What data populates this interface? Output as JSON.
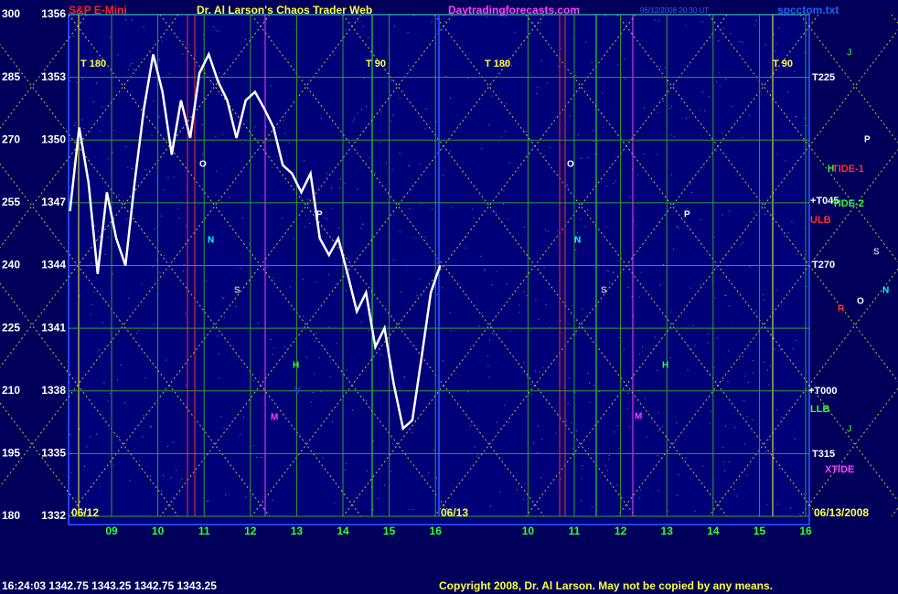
{
  "chart_data": {
    "type": "line",
    "header": [
      {
        "text": "S&P E-Mini",
        "color": "#ff2020"
      },
      {
        "text": "Dr. Al Larson's Chaos Trader Web",
        "color": "#ffff40"
      },
      {
        "text": "Daytradingforecasts.com",
        "color": "#ff40ff"
      },
      {
        "text": "06/12/2008 20:30 UT",
        "color": "#4060ff"
      },
      {
        "text": "spcctom.txt",
        "color": "#2060ff"
      }
    ],
    "ylim": [
      1332,
      1356
    ],
    "yticks": [
      1332,
      1335,
      1338,
      1341,
      1344,
      1347,
      1350,
      1353,
      1356
    ],
    "y2lim": [
      180,
      300
    ],
    "y2ticks": [
      180,
      195,
      210,
      225,
      240,
      255,
      270,
      285,
      300
    ],
    "xlim": [
      -0.93,
      15.08
    ],
    "xticks": [
      {
        "value": 0,
        "label": "09"
      },
      {
        "value": 1,
        "label": "10"
      },
      {
        "value": 2,
        "label": "11"
      },
      {
        "value": 3,
        "label": "12"
      },
      {
        "value": 4,
        "label": "13"
      },
      {
        "value": 5,
        "label": "14"
      },
      {
        "value": 6,
        "label": "15"
      },
      {
        "value": 7,
        "label": "16"
      },
      {
        "value": 9,
        "label": "10"
      },
      {
        "value": 10,
        "label": "11"
      },
      {
        "value": 11,
        "label": "12"
      },
      {
        "value": 12,
        "label": "13"
      },
      {
        "value": 13,
        "label": "14"
      },
      {
        "value": 14,
        "label": "15"
      },
      {
        "value": 15,
        "label": "16"
      }
    ],
    "dates": [
      "06/12",
      "06/13",
      "06/13/2008"
    ],
    "cycle_labels": [
      "T 180",
      "T 90",
      "T 180",
      "T 90"
    ],
    "right_labels": [
      {
        "text": "T225",
        "color": "#ffffff"
      },
      {
        "text": "TIDE-1",
        "color": "#ff3030"
      },
      {
        "text": "+T045",
        "color": "#ffffff"
      },
      {
        "text": "TIDE-2",
        "color": "#30ff30"
      },
      {
        "text": "ULB",
        "color": "#ff3030"
      },
      {
        "text": "T270",
        "color": "#ffffff"
      },
      {
        "text": "+T000",
        "color": "#ffffff"
      },
      {
        "text": "LLB",
        "color": "#30ff30"
      },
      {
        "text": "T315",
        "color": "#ffffff"
      },
      {
        "text": "XTIDE",
        "color": "#ff40ff"
      }
    ],
    "annotations": [
      {
        "text": "O",
        "color": "#ffffff"
      },
      {
        "text": "P",
        "color": "#ffffff"
      },
      {
        "text": "N",
        "color": "#00ffff"
      },
      {
        "text": "S",
        "color": "#c0c0c0"
      },
      {
        "text": "M",
        "color": "#ff40ff"
      },
      {
        "text": "V",
        "color": "#3030ff"
      },
      {
        "text": "H",
        "color": "#30ff30"
      },
      {
        "text": "O",
        "color": "#ffffff"
      },
      {
        "text": "P",
        "color": "#ffffff"
      },
      {
        "text": "N",
        "color": "#00ffff"
      },
      {
        "text": "S",
        "color": "#c0c0c0"
      },
      {
        "text": "M",
        "color": "#ff40ff"
      },
      {
        "text": "H",
        "color": "#30ff30"
      },
      {
        "text": "J",
        "color": "#30c030"
      },
      {
        "text": "P",
        "color": "#ffffff"
      },
      {
        "text": "H",
        "color": "#30ff30"
      },
      {
        "text": "S",
        "color": "#c0c0c0"
      },
      {
        "text": "N",
        "color": "#00ffff"
      },
      {
        "text": "R",
        "color": "#ff3030"
      },
      {
        "text": "O",
        "color": "#ffffff"
      },
      {
        "text": "J",
        "color": "#30c030"
      }
    ],
    "series": [
      {
        "color": "#ffffff",
        "x": [
          -0.9,
          -0.7,
          -0.5,
          -0.3,
          -0.1,
          0.1,
          0.3,
          0.5,
          0.7,
          0.9,
          1.1,
          1.3,
          1.5,
          1.7,
          1.9,
          2.1,
          2.3,
          2.5,
          2.7,
          2.9,
          3.1,
          3.3,
          3.5,
          3.7,
          3.9,
          4.1,
          4.3,
          4.5,
          4.7,
          4.9,
          5.1,
          5.3,
          5.5,
          5.7,
          5.9,
          6.1,
          6.3,
          6.5,
          6.7,
          6.9,
          7.1
        ],
        "values": [
          1346.6,
          1350.6,
          1348.0,
          1343.6,
          1347.5,
          1345.3,
          1344.0,
          1348.0,
          1351.5,
          1354.1,
          1352.3,
          1349.3,
          1351.9,
          1350.1,
          1353.2,
          1354.1,
          1352.8,
          1351.9,
          1350.1,
          1351.9,
          1352.3,
          1351.5,
          1350.6,
          1348.8,
          1348.4,
          1347.5,
          1348.4,
          1345.3,
          1344.5,
          1345.3,
          1343.6,
          1341.8,
          1342.7,
          1340.1,
          1341.0,
          1338.3,
          1336.2,
          1336.6,
          1339.6,
          1342.7,
          1344.0
        ]
      }
    ],
    "status": "16:24:03  1342.75 1343.25 1342.75 1343.25",
    "copyright": "Copyright 2008, Dr. Al Larson. May not be copied by any means."
  }
}
